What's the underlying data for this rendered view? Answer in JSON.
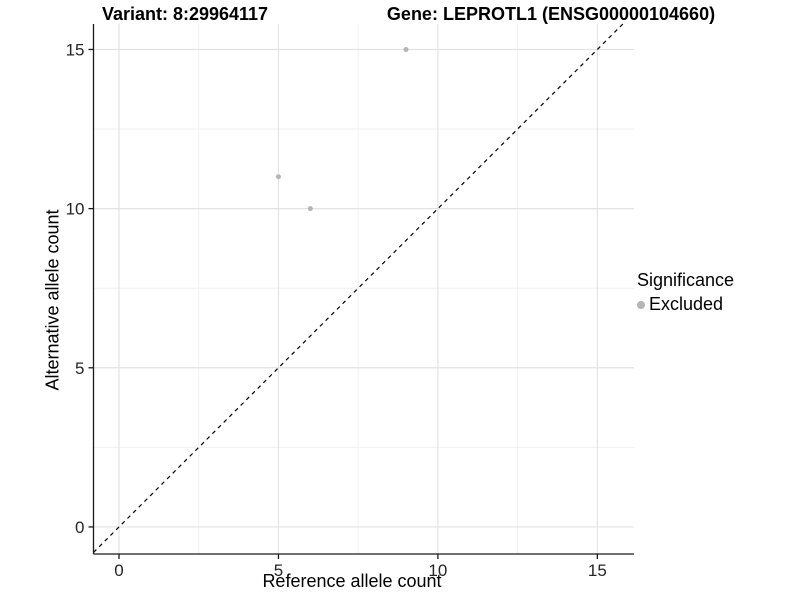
{
  "titles": {
    "variant": "Variant: 8:29964117",
    "gene": "Gene: LEPROTL1 (ENSG00000104660)"
  },
  "chart_data": {
    "type": "scatter",
    "xlabel": "Reference allele count",
    "ylabel": "Alternative allele count",
    "x_ticks": [
      0,
      5,
      10,
      15
    ],
    "y_ticks": [
      0,
      5,
      10,
      15
    ],
    "x_minor_ticks": [
      2.5,
      7.5,
      12.5
    ],
    "y_minor_ticks": [
      2.5,
      7.5,
      12.5
    ],
    "xlim": [
      -0.8,
      16.15
    ],
    "ylim": [
      -0.85,
      15.8
    ],
    "grid": true,
    "series": [
      {
        "name": "Excluded",
        "color": "#b5b5b5",
        "points": [
          {
            "x": 9,
            "y": 15
          },
          {
            "x": 5,
            "y": 11
          },
          {
            "x": 6,
            "y": 10
          }
        ]
      }
    ],
    "abline": {
      "slope": 1,
      "intercept": 0,
      "linetype": "dashed",
      "color": "#000000"
    },
    "legend": {
      "position": "right",
      "title": "Significance",
      "items": [
        {
          "label": "Excluded",
          "color": "#b5b5b5"
        }
      ]
    },
    "colors": {
      "background": "#ffffff",
      "grid_major": "#e3e3e3",
      "grid_minor": "#f0f0f0",
      "axis_line": "#1a1a1a",
      "tick_label": "#262626",
      "point": "#b5b5b5"
    }
  }
}
